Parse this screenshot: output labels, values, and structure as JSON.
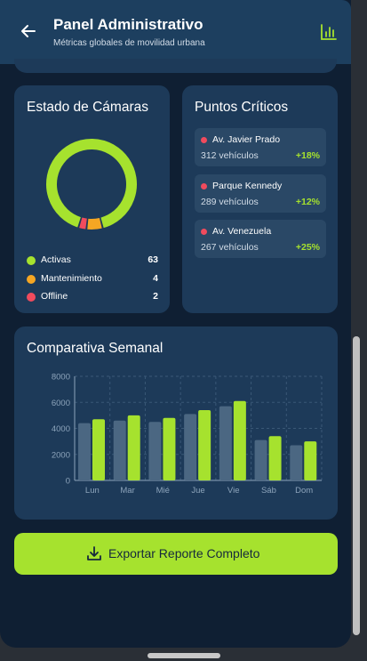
{
  "header": {
    "title": "Panel Administrativo",
    "subtitle": "Métricas globales de movilidad urbana",
    "back_icon": "arrow-left-icon",
    "chart_icon": "bar-chart-icon"
  },
  "colors": {
    "accent": "#a6e22e",
    "warning": "#f5a623",
    "danger": "#f04b5d",
    "card": "#1d3a59",
    "background": "#0f1f33"
  },
  "cameras": {
    "title": "Estado de Cámaras",
    "items": [
      {
        "label": "Activas",
        "value": "63",
        "color": "#a6e22e"
      },
      {
        "label": "Mantenimiento",
        "value": "4",
        "color": "#f5a623"
      },
      {
        "label": "Offline",
        "value": "2",
        "color": "#f04b5d"
      }
    ]
  },
  "critical": {
    "title": "Puntos Críticos",
    "items": [
      {
        "name": "Av. Javier Prado",
        "count": "312 vehículos",
        "change": "+18%"
      },
      {
        "name": "Parque Kennedy",
        "count": "289 vehículos",
        "change": "+12%"
      },
      {
        "name": "Av. Venezuela",
        "count": "267 vehículos",
        "change": "+25%"
      }
    ]
  },
  "weekly": {
    "title": "Comparativa Semanal"
  },
  "chart_data": {
    "type": "bar",
    "categories": [
      "Lun",
      "Mar",
      "Mié",
      "Jue",
      "Vie",
      "Sáb",
      "Dom"
    ],
    "series": [
      {
        "values": [
          4400,
          4600,
          4500,
          5100,
          5700,
          3100,
          2700
        ],
        "color": "#4b6782"
      },
      {
        "values": [
          4700,
          5000,
          4800,
          5400,
          6100,
          3400,
          3000
        ],
        "color": "#a6e22e"
      }
    ],
    "yticks": [
      "0",
      "2000",
      "4000",
      "6000",
      "8000"
    ],
    "ylim": [
      0,
      8000
    ],
    "grid": true
  },
  "export": {
    "label": "Exportar Reporte Completo",
    "icon": "download-icon"
  }
}
